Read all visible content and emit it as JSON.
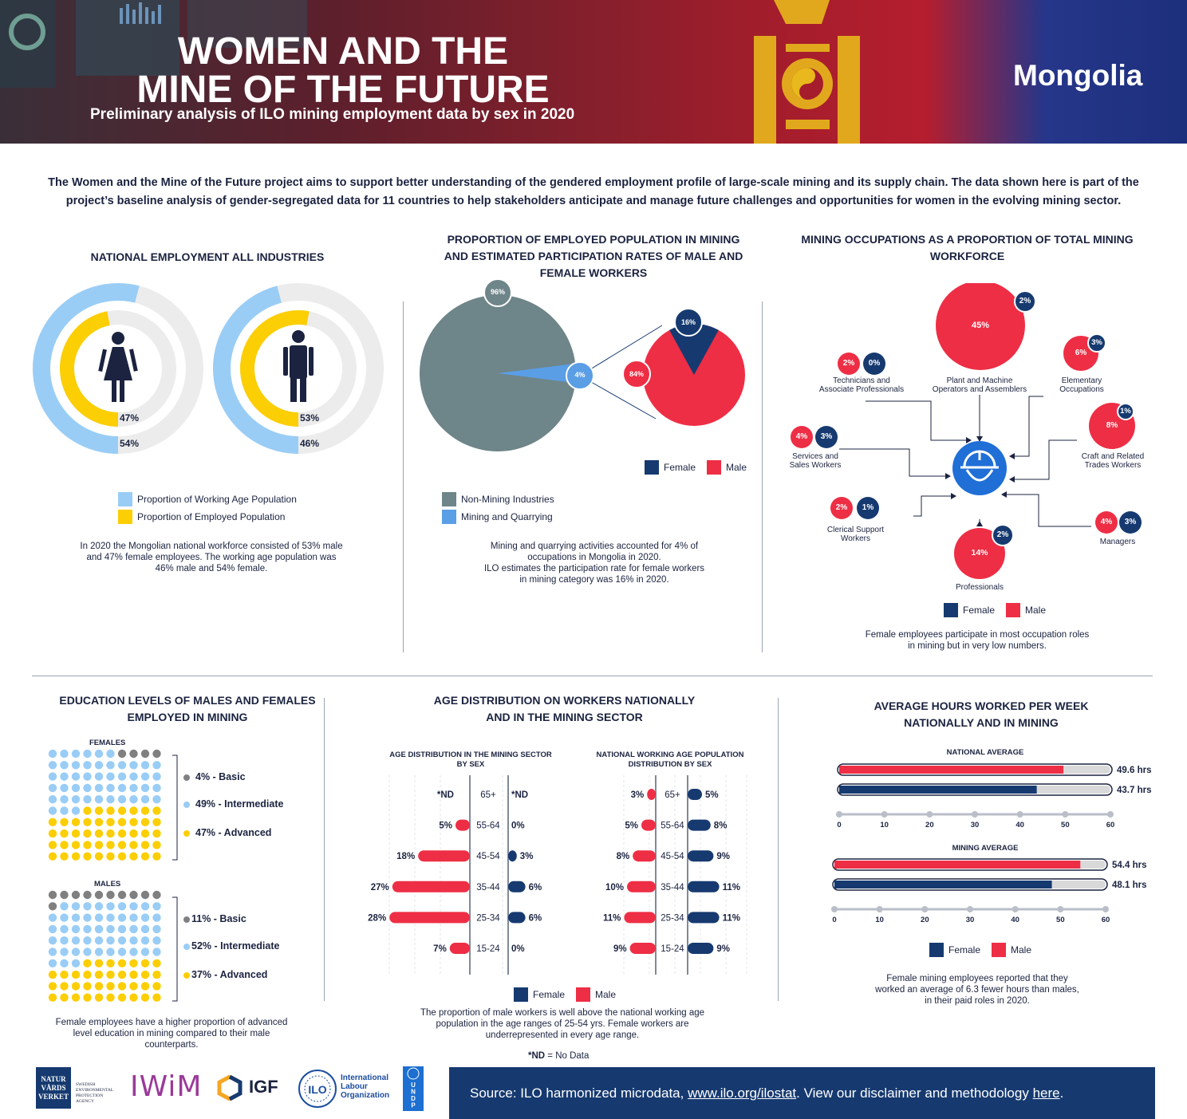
{
  "header": {
    "title_line1": "WOMEN AND THE",
    "title_line2": "MINE OF THE FUTURE",
    "subtitle": "Preliminary analysis of ILO mining employment data by sex in 2020",
    "country": "Mongolia"
  },
  "intro": "The Women and the Mine of the Future project aims to support better understanding of the gendered employment profile of large-scale mining and its supply chain. The data shown here is part of the project’s baseline analysis of gender-segregated data for 11 countries to help stakeholders anticipate and manage future challenges and opportunities for women in the evolving mining sector.",
  "colors": {
    "female": "#163a70",
    "male": "#ee2e45",
    "working_age": "#99cdf6",
    "employed": "#fcce04",
    "non_mining": "#6e8589",
    "mining": "#5a9ee6",
    "basic": "#808080",
    "track": "#ececec"
  },
  "national_employment": {
    "title": "NATIONAL EMPLOYMENT ALL INDUSTRIES",
    "female": {
      "employed_label": "47%",
      "employed": 47,
      "working_label": "54%",
      "working": 54
    },
    "male": {
      "employed_label": "53%",
      "employed": 53,
      "working_label": "46%",
      "working": 46
    },
    "legend_working": "Proportion of Working Age Population",
    "legend_employed": "Proportion of Employed Population",
    "note": "In 2020 the Mongolian national workforce consisted of 53% male and 47% female employees. The working age population was 46% male and 54% female."
  },
  "proportion_mining": {
    "title": "PROPORTION OF EMPLOYED POPULATION IN MINING AND ESTIMATED PARTICIPATION RATES OF MALE AND FEMALE WORKERS",
    "non_mining_label": "96%",
    "non_mining": 96,
    "mining_label": "4%",
    "mining": 4,
    "female_label": "16%",
    "female": 16,
    "male_label": "84%",
    "male": 84,
    "legend_female": "Female",
    "legend_male": "Male",
    "legend_non_mining": "Non-Mining Industries",
    "legend_mining": "Mining and Quarrying",
    "note_line1": "Mining and quarrying activities accounted for 4% of",
    "note_line2": "occupations in Mongolia in 2020.",
    "note_line3": "ILO estimates the participation rate for female workers",
    "note_line4": "in mining category was 16% in 2020."
  },
  "occupations": {
    "title": "MINING OCCUPATIONS AS A PROPORTION OF TOTAL MINING WORKFORCE",
    "items": [
      {
        "name_l1": "Technicians and",
        "name_l2": "Associate Professionals",
        "male": "2%",
        "female": "0%"
      },
      {
        "name_l1": "Plant and Machine",
        "name_l2": "Operators and Assemblers",
        "male": "45%",
        "female": "2%"
      },
      {
        "name_l1": "Elementary",
        "name_l2": "Occupations",
        "male": "6%",
        "female": "3%"
      },
      {
        "name_l1": "Services and",
        "name_l2": "Sales Workers",
        "male": "4%",
        "female": "3%"
      },
      {
        "name_l1": "Craft and Related",
        "name_l2": "Trades Workers",
        "male": "8%",
        "female": "1%"
      },
      {
        "name_l1": "Clerical Support",
        "name_l2": "Workers",
        "male": "2%",
        "female": "1%"
      },
      {
        "name_l1": "Managers",
        "name_l2": "",
        "male": "4%",
        "female": "3%"
      },
      {
        "name_l1": "Professionals",
        "name_l2": "",
        "male": "14%",
        "female": "2%"
      }
    ],
    "legend_female": "Female",
    "legend_male": "Male",
    "note_line1": "Female employees participate in most occupation roles",
    "note_line2": "in mining but in very low numbers."
  },
  "education": {
    "title_l1": "EDUCATION LEVELS OF MALES AND FEMALES",
    "title_l2": "EMPLOYED IN MINING",
    "females_label": "FEMALES",
    "males_label": "MALES",
    "females": [
      {
        "label": "4% - Basic",
        "pct": 4
      },
      {
        "label": "49% - Intermediate",
        "pct": 49
      },
      {
        "label": "47% - Advanced",
        "pct": 47
      }
    ],
    "males": [
      {
        "label": "11% - Basic",
        "pct": 11
      },
      {
        "label": "52% - Intermediate",
        "pct": 52
      },
      {
        "label": "37% - Advanced",
        "pct": 37
      }
    ],
    "note_line1": "Female employees have a higher proportion of advanced",
    "note_line2": "level education in mining compared to their male",
    "note_line3": "counterparts."
  },
  "chart_data": [
    {
      "type": "bar",
      "title": "AGE DISTRIBUTION IN THE MINING SECTOR BY SEX",
      "title_l1": "AGE DISTRIBUTION IN THE MINING SECTOR",
      "title_l2": "BY SEX",
      "categories": [
        "65+",
        "55-64",
        "45-54",
        "35-44",
        "25-34",
        "15-24"
      ],
      "series": [
        {
          "name": "Male",
          "values": [
            null,
            5,
            18,
            27,
            28,
            7
          ],
          "labels": [
            "*ND",
            "5%",
            "18%",
            "27%",
            "28%",
            "7%"
          ]
        },
        {
          "name": "Female",
          "values": [
            null,
            0,
            3,
            6,
            6,
            0
          ],
          "labels": [
            "*ND",
            "0%",
            "3%",
            "6%",
            "6%",
            "0%"
          ]
        }
      ]
    },
    {
      "type": "bar",
      "title": "NATIONAL WORKING AGE POPULATION DISTRIBUTION BY SEX",
      "title_l1": "NATIONAL WORKING AGE POPULATION",
      "title_l2": "DISTRIBUTION BY SEX",
      "categories": [
        "65+",
        "55-64",
        "45-54",
        "35-44",
        "25-34",
        "15-24"
      ],
      "series": [
        {
          "name": "Male",
          "values": [
            3,
            5,
            8,
            10,
            11,
            9
          ],
          "labels": [
            "3%",
            "5%",
            "8%",
            "10%",
            "11%",
            "9%"
          ]
        },
        {
          "name": "Female",
          "values": [
            5,
            8,
            9,
            11,
            11,
            9
          ],
          "labels": [
            "5%",
            "8%",
            "9%",
            "11%",
            "11%",
            "9%"
          ]
        }
      ]
    },
    {
      "type": "bar",
      "title": "NATIONAL AVERAGE",
      "xlim": [
        0,
        60
      ],
      "ticks": [
        "0",
        "10",
        "20",
        "30",
        "40",
        "50",
        "60"
      ],
      "series": [
        {
          "name": "Male",
          "value": 49.6,
          "label": "49.6 hrs"
        },
        {
          "name": "Female",
          "value": 43.7,
          "label": "43.7 hrs"
        }
      ]
    },
    {
      "type": "bar",
      "title": "MINING AVERAGE",
      "xlim": [
        0,
        60
      ],
      "ticks": [
        "0",
        "10",
        "20",
        "30",
        "40",
        "50",
        "60"
      ],
      "series": [
        {
          "name": "Male",
          "value": 54.4,
          "label": "54.4 hrs"
        },
        {
          "name": "Female",
          "value": 48.1,
          "label": "48.1 hrs"
        }
      ]
    }
  ],
  "age_section": {
    "title_l1": "AGE DISTRIBUTION ON WORKERS NATIONALLY",
    "title_l2": "AND IN THE MINING SECTOR",
    "legend_female": "Female",
    "legend_male": "Male",
    "note_line1": "The proportion of male workers is well above the national working age",
    "note_line2": "population in the age ranges of 25-54 yrs. Female workers are",
    "note_line3": "underrepresented in every age range.",
    "nd_key": "*ND",
    "nd_text": "= No Data"
  },
  "hours_section": {
    "title_l1": "AVERAGE HOURS WORKED PER WEEK",
    "title_l2": "NATIONALLY AND IN MINING",
    "legend_female": "Female",
    "legend_male": "Male",
    "note_line1": "Female mining employees reported that they",
    "note_line2": "worked an average of 6.3 fewer hours than males,",
    "note_line3": "in their paid roles in 2020."
  },
  "footer": {
    "source_prefix": "Source: ILO harmonized microdata,",
    "link1": "www.ilo.org/ilostat",
    "mid_text": ". View our disclaimer and methodology",
    "link2": "here",
    "end": ".",
    "logos": {
      "natur1": "NATUR",
      "natur2": "VÅRDS",
      "natur3": "VERKET",
      "swedish1": "SWEDISH",
      "swedish2": "ENVIRONMENTAL",
      "swedish3": "PROTECTION",
      "swedish4": "AGENCY",
      "iwim": "IWiM",
      "igf": "IGF",
      "ilo1": "International",
      "ilo2": "Labour",
      "ilo3": "Organization",
      "ilo_seal": "ILO",
      "undp": "UNDP"
    }
  }
}
